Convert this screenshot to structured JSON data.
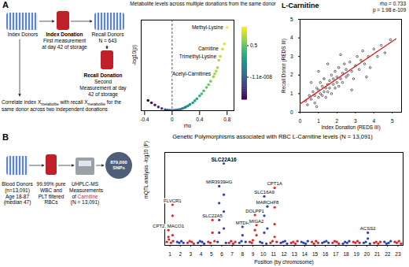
{
  "panel_labels": [
    "A",
    "B"
  ],
  "diagram_a": {
    "index_donors": "Index Donors",
    "index_donation": "Index Donation",
    "first_measurement": "First measurement at day 42 of storage",
    "recall_donors": "Recall Donors",
    "recall_n": "N = 643",
    "recall_donation": "Recall Donation",
    "second_measurement": "Second Measurement at day 42 of storage",
    "correlate": [
      {
        "t": "Correlate index X"
      },
      {
        "t": "metabolite",
        "sub": true
      },
      {
        "t": " with recall X"
      },
      {
        "t": "metabolite",
        "sub": true
      },
      {
        "t": " for the same donor across two independent donations"
      }
    ]
  },
  "diagram_b": {
    "donors": "Blood Donors (n=13,091) Age 18-87 (median 47)",
    "rbc": "99.99% pure WBC and PLT filtered RBCs",
    "measure": [
      {
        "t": "UHPLC-MS Measurements of "
      },
      {
        "t": "Carnitine",
        "color": "#d7191c"
      },
      {
        "t": " (N = 13,091)"
      }
    ],
    "snps": "879,000 SNPs"
  },
  "chart_data": [
    {
      "type": "scatter",
      "title": "Metabolite levels across multiple donations from the same donor",
      "x_label": "rho",
      "y_label": "-log10(p)",
      "x": [
        -0.35,
        -0.3,
        -0.25,
        -0.2,
        -0.15,
        -0.1,
        -0.07,
        -0.04,
        -0.02,
        0.0,
        0.02,
        0.04,
        0.06,
        0.08,
        0.1,
        0.12,
        0.15,
        0.18,
        0.2,
        0.23,
        0.26,
        0.3,
        0.33,
        0.36,
        0.4,
        0.43,
        0.46,
        0.5,
        0.53,
        0.56,
        0.6,
        0.62,
        0.64,
        0.66,
        0.68,
        0.7,
        0.733,
        0.76,
        0.8
      ],
      "y": [
        18,
        14,
        10,
        6.5,
        3.8,
        1.8,
        1.0,
        0.5,
        0.2,
        0.0,
        0.2,
        0.5,
        0.9,
        1.3,
        1.8,
        2.5,
        3.8,
        5.3,
        6.5,
        8.5,
        11,
        14,
        17.5,
        21,
        26,
        30,
        35,
        41,
        46,
        52,
        60,
        65,
        70,
        76,
        89,
        96,
        108.7,
        118,
        147
      ],
      "xlim": [
        -0.45,
        0.9
      ],
      "ylim": [
        0,
        160
      ],
      "xticks": [
        -0.4,
        0,
        0.4,
        0.8
      ],
      "yticks": [],
      "tick_labels": "x",
      "vline": 0,
      "colorbar": {
        "range": [
          -0.35,
          0.8
        ],
        "ticks": [
          0.5,
          {
            "value": -1.1e-08,
            "label": "-1.1e-008"
          }
        ]
      },
      "annotations": [
        {
          "text": "Methyl-Lysine",
          "x": 0.8,
          "y": 147
        },
        {
          "text": "Carnitine",
          "x": 0.733,
          "y": 108.7
        },
        {
          "text": "Trimethyl-Lysine",
          "x": 0.7,
          "y": 96
        },
        {
          "text": "Acetyl-Carnitines",
          "x": 0.62,
          "y": 65
        }
      ]
    },
    {
      "type": "scatter",
      "title": "L-Carnitine",
      "stats": [
        "rho = 0.733",
        "p = 1.98 e-109"
      ],
      "x_label": "Index Donation (REDS III)",
      "y_label": "Recall Donor (REDS III)",
      "color": "#000000",
      "x": [
        0.3,
        0.4,
        0.5,
        0.6,
        0.7,
        0.8,
        0.8,
        0.9,
        1.0,
        1.0,
        1.1,
        1.1,
        1.2,
        1.2,
        1.3,
        1.3,
        1.4,
        1.4,
        1.5,
        1.5,
        1.6,
        1.6,
        1.7,
        1.7,
        1.8,
        1.8,
        1.9,
        1.9,
        2.0,
        2.0,
        2.1,
        2.1,
        2.2,
        2.3,
        2.3,
        2.4,
        2.5,
        2.5,
        2.6,
        2.7,
        2.8,
        2.9,
        3.0,
        3.1,
        3.2,
        3.3,
        3.4,
        3.5,
        3.7,
        3.8,
        4.0,
        4.2,
        4.4,
        4.6,
        4.9,
        0.6,
        1.0,
        2.2,
        2.8,
        3.6,
        1.5,
        0.9
      ],
      "y": [
        0.6,
        0.4,
        0.9,
        0.7,
        1.1,
        0.5,
        0.9,
        1.3,
        0.8,
        1.2,
        1.0,
        1.6,
        0.9,
        1.4,
        1.1,
        1.8,
        1.3,
        0.8,
        1.5,
        1.1,
        1.7,
        1.3,
        1.0,
        2.0,
        1.5,
        1.8,
        1.3,
        2.2,
        1.6,
        1.9,
        2.4,
        1.4,
        1.8,
        2.1,
        1.6,
        2.6,
        1.9,
        2.3,
        2.0,
        2.7,
        2.2,
        1.8,
        2.5,
        3.0,
        2.3,
        2.8,
        3.3,
        2.6,
        3.0,
        2.4,
        3.4,
        3.0,
        3.6,
        3.2,
        3.9,
        1.6,
        2.2,
        3.1,
        1.2,
        1.9,
        2.6,
        0.3
      ],
      "xlim": [
        0,
        5.5
      ],
      "ylim": [
        0,
        5
      ],
      "xticks": [
        0,
        1,
        2,
        3,
        4,
        5
      ],
      "yticks": [
        0,
        1,
        2,
        3,
        4,
        5
      ],
      "fit_line": {
        "x": [
          0,
          5.2
        ],
        "y": [
          0.45,
          3.95
        ],
        "color": "#e41a1c"
      }
    },
    {
      "type": "scatter",
      "title": "Genetic Polymorphisms associated with RBC L-Carnitine levels (N = 13,091)",
      "x_label": "Position (by chromosome)",
      "y_label": "mQTL analysis -log10 (P)",
      "series": [
        {
          "color": "#e8202a",
          "x": [
            0.7,
            0.9,
            1.1,
            1.3,
            0.85,
            0.85,
            1.25,
            1.25,
            1.25,
            1.25,
            2.7,
            2.9,
            3.1,
            3.3,
            4.7,
            4.9,
            5.3,
            5.1,
            5.1,
            6.7,
            6.9,
            7.1,
            7.3,
            8.7,
            8.9,
            9.0,
            9.2,
            9.2,
            9.35,
            9.35,
            10.7,
            10.9,
            11.3,
            11.1,
            11.1,
            11.1,
            11.1,
            12.7,
            12.9,
            13.1,
            13.3,
            14.7,
            14.9,
            15.1,
            15.3,
            16.7,
            16.9,
            17.1,
            17.3,
            18.7,
            18.9,
            19.1,
            19.3,
            20.7,
            20.9,
            21.1,
            21.3,
            22.7,
            22.9,
            23.1,
            23.3
          ],
          "y": [
            4,
            7,
            3,
            5,
            18,
            10,
            48,
            35,
            22,
            12,
            3,
            5,
            4,
            2,
            4,
            3,
            5,
            30,
            15,
            3,
            5,
            2,
            4,
            4,
            3,
            6,
            36,
            18,
            24,
            12,
            3,
            5,
            4,
            68,
            45,
            25,
            10,
            3,
            4,
            2,
            5,
            4,
            2,
            5,
            3,
            3,
            5,
            4,
            2,
            4,
            3,
            5,
            3,
            3,
            4,
            2,
            4,
            4,
            3,
            5,
            2
          ]
        },
        {
          "color": "#2b3fc2",
          "x": [
            1.7,
            1.9,
            2.1,
            2.3,
            3.7,
            3.9,
            4.1,
            4.3,
            5.6,
            6.4,
            5.75,
            5.75,
            5.75,
            5.75,
            6.2,
            6.2,
            6.2,
            6.2,
            7.7,
            7.9,
            8.3,
            8.0,
            8.0,
            9.7,
            9.9,
            10.3,
            10.1,
            10.1,
            10.1,
            10.4,
            10.4,
            11.7,
            11.9,
            12.1,
            12.3,
            13.7,
            13.9,
            14.1,
            14.3,
            15.7,
            15.9,
            16.1,
            16.3,
            17.7,
            17.9,
            18.1,
            18.3,
            19.7,
            19.9,
            20.3,
            20.1,
            20.1,
            21.7,
            21.9,
            22.1,
            22.3
          ],
          "y": [
            4,
            3,
            5,
            3,
            3,
            5,
            4,
            2,
            4,
            3,
            70,
            50,
            30,
            15,
            97,
            60,
            40,
            20,
            3,
            5,
            4,
            22,
            12,
            4,
            3,
            2,
            58,
            35,
            15,
            46,
            20,
            3,
            4,
            5,
            2,
            4,
            3,
            2,
            5,
            3,
            4,
            5,
            3,
            2,
            4,
            3,
            5,
            3,
            4,
            2,
            15,
            8,
            4,
            2,
            3,
            5
          ]
        }
      ],
      "xlim": [
        0.5,
        23.5
      ],
      "ylim": [
        0,
        110
      ],
      "xticks": [
        1,
        2,
        3,
        4,
        5,
        6,
        7,
        8,
        9,
        10,
        11,
        12,
        13,
        14,
        15,
        16,
        17,
        18,
        19,
        20,
        21,
        22,
        23
      ],
      "yticks": [],
      "tick_labels": "x",
      "annotations": [
        {
          "text": "FLVCR1",
          "x": 1.25,
          "y": 48
        },
        {
          "text": "CPT2, MACO1",
          "x": 0.85,
          "y": 18
        },
        {
          "text": "SLC22A5",
          "x": 5.1,
          "y": 30
        },
        {
          "text": "MIR3939HG",
          "x": 5.75,
          "y": 70
        },
        {
          "text": "SLC22A16",
          "x": 6.2,
          "y": 97
        },
        {
          "text": "MTDH",
          "x": 8.0,
          "y": 22
        },
        {
          "text": "DOLPP1",
          "x": 9.2,
          "y": 36
        },
        {
          "text": "MIGA2",
          "x": 9.35,
          "y": 24
        },
        {
          "text": "SLC16A9",
          "x": 10.1,
          "y": 58
        },
        {
          "text": "MARCHF8",
          "x": 10.4,
          "y": 46
        },
        {
          "text": "CPT1A",
          "x": 11.1,
          "y": 68
        },
        {
          "text": "ACSS2",
          "x": 20.1,
          "y": 15
        }
      ]
    }
  ]
}
